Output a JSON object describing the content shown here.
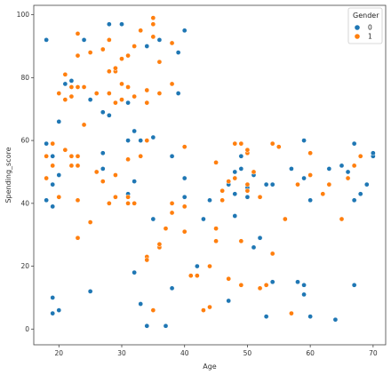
{
  "chart_data": {
    "type": "scatter",
    "xlabel": "Age",
    "ylabel": "Spending_score",
    "xlim": [
      16,
      72
    ],
    "ylim": [
      -5,
      103
    ],
    "xticks": [
      20,
      30,
      40,
      50,
      60,
      70
    ],
    "yticks": [
      0,
      20,
      40,
      60,
      80,
      100
    ],
    "grid": false,
    "legend": {
      "title": "Gender",
      "placement": "top-right",
      "entries": [
        {
          "label": "0",
          "color": "#1f77b4"
        },
        {
          "label": "1",
          "color": "#ff7f0e"
        }
      ]
    },
    "series": [
      {
        "name": "0",
        "color": "#1f77b4",
        "points": [
          [
            18,
            92
          ],
          [
            22,
            79
          ],
          [
            24,
            92
          ],
          [
            25,
            73
          ],
          [
            27,
            69
          ],
          [
            28,
            68
          ],
          [
            30,
            73
          ],
          [
            31,
            72
          ],
          [
            32,
            63
          ],
          [
            33,
            60
          ],
          [
            34,
            90
          ],
          [
            35,
            61
          ],
          [
            36,
            92
          ],
          [
            38,
            91
          ],
          [
            39,
            75
          ],
          [
            39,
            88
          ],
          [
            40,
            95
          ],
          [
            38,
            55
          ],
          [
            21,
            78
          ],
          [
            18,
            59
          ],
          [
            18,
            41
          ],
          [
            19,
            55
          ],
          [
            19,
            46
          ],
          [
            19,
            39
          ],
          [
            20,
            66
          ],
          [
            20,
            49
          ],
          [
            27,
            56
          ],
          [
            27,
            51
          ],
          [
            31,
            60
          ],
          [
            32,
            47
          ],
          [
            31,
            43
          ],
          [
            35,
            35
          ],
          [
            40,
            42
          ],
          [
            40,
            48
          ],
          [
            43,
            35
          ],
          [
            44,
            41
          ],
          [
            46,
            44
          ],
          [
            47,
            46
          ],
          [
            48,
            50
          ],
          [
            48,
            43
          ],
          [
            48,
            36
          ],
          [
            49,
            55
          ],
          [
            49,
            51
          ],
          [
            50,
            42
          ],
          [
            50,
            45
          ],
          [
            51,
            26
          ],
          [
            51,
            49
          ],
          [
            52,
            29
          ],
          [
            53,
            46
          ],
          [
            54,
            46
          ],
          [
            57,
            51
          ],
          [
            59,
            60
          ],
          [
            59,
            48
          ],
          [
            60,
            41
          ],
          [
            63,
            51
          ],
          [
            65,
            52
          ],
          [
            66,
            50
          ],
          [
            67,
            59
          ],
          [
            67,
            41
          ],
          [
            68,
            43
          ],
          [
            69,
            46
          ],
          [
            70,
            55
          ],
          [
            70,
            56
          ],
          [
            67,
            14
          ],
          [
            59,
            14
          ],
          [
            59,
            11
          ],
          [
            60,
            4
          ],
          [
            53,
            4
          ],
          [
            54,
            15
          ],
          [
            58,
            15
          ],
          [
            64,
            3
          ],
          [
            47,
            9
          ],
          [
            42,
            20
          ],
          [
            38,
            13
          ],
          [
            37,
            1
          ],
          [
            34,
            1
          ],
          [
            33,
            8
          ],
          [
            32,
            18
          ],
          [
            25,
            12
          ],
          [
            20,
            6
          ],
          [
            19,
            5
          ],
          [
            19,
            10
          ],
          [
            30,
            97
          ],
          [
            28,
            97
          ]
        ]
      },
      {
        "name": "1",
        "color": "#ff7f0e",
        "points": [
          [
            20,
            75
          ],
          [
            21,
            81
          ],
          [
            21,
            73
          ],
          [
            22,
            77
          ],
          [
            23,
            77
          ],
          [
            23,
            94
          ],
          [
            23,
            87
          ],
          [
            24,
            77
          ],
          [
            24,
            65
          ],
          [
            25,
            88
          ],
          [
            27,
            89
          ],
          [
            28,
            75
          ],
          [
            28,
            92
          ],
          [
            29,
            82
          ],
          [
            29,
            83
          ],
          [
            30,
            73
          ],
          [
            30,
            78
          ],
          [
            30,
            86
          ],
          [
            31,
            77
          ],
          [
            31,
            87
          ],
          [
            32,
            74
          ],
          [
            32,
            90
          ],
          [
            33,
            95
          ],
          [
            34,
            72
          ],
          [
            34,
            76
          ],
          [
            35,
            97
          ],
          [
            35,
            99
          ],
          [
            35,
            93
          ],
          [
            36,
            85
          ],
          [
            36,
            75
          ],
          [
            38,
            78
          ],
          [
            38,
            91
          ],
          [
            29,
            72
          ],
          [
            28,
            82
          ],
          [
            22,
            74
          ],
          [
            26,
            75
          ],
          [
            18,
            48
          ],
          [
            19,
            52
          ],
          [
            19,
            59
          ],
          [
            20,
            42
          ],
          [
            21,
            57
          ],
          [
            22,
            55
          ],
          [
            22,
            52
          ],
          [
            23,
            41
          ],
          [
            23,
            29
          ],
          [
            23,
            52
          ],
          [
            25,
            34
          ],
          [
            26,
            50
          ],
          [
            27,
            47
          ],
          [
            28,
            40
          ],
          [
            29,
            49
          ],
          [
            29,
            42
          ],
          [
            31,
            54
          ],
          [
            31,
            42
          ],
          [
            31,
            40
          ],
          [
            32,
            40
          ],
          [
            33,
            55
          ],
          [
            34,
            60
          ],
          [
            34,
            23
          ],
          [
            34,
            22
          ],
          [
            35,
            6
          ],
          [
            36,
            26
          ],
          [
            36,
            27
          ],
          [
            37,
            32
          ],
          [
            38,
            40
          ],
          [
            38,
            37
          ],
          [
            40,
            31
          ],
          [
            40,
            58
          ],
          [
            40,
            39
          ],
          [
            41,
            17
          ],
          [
            42,
            17
          ],
          [
            43,
            6
          ],
          [
            44,
            20
          ],
          [
            44,
            7
          ],
          [
            45,
            32
          ],
          [
            45,
            28
          ],
          [
            45,
            53
          ],
          [
            46,
            44
          ],
          [
            46,
            41
          ],
          [
            47,
            47
          ],
          [
            47,
            16
          ],
          [
            48,
            59
          ],
          [
            48,
            48
          ],
          [
            49,
            59
          ],
          [
            49,
            28
          ],
          [
            49,
            14
          ],
          [
            50,
            56
          ],
          [
            50,
            44
          ],
          [
            50,
            46
          ],
          [
            50,
            57
          ],
          [
            51,
            50
          ],
          [
            52,
            42
          ],
          [
            52,
            13
          ],
          [
            53,
            14
          ],
          [
            54,
            59
          ],
          [
            54,
            24
          ],
          [
            55,
            58
          ],
          [
            56,
            35
          ],
          [
            57,
            5
          ],
          [
            58,
            46
          ],
          [
            60,
            49
          ],
          [
            60,
            56
          ],
          [
            62,
            43
          ],
          [
            63,
            46
          ],
          [
            65,
            35
          ],
          [
            66,
            48
          ],
          [
            67,
            52
          ],
          [
            68,
            55
          ],
          [
            18,
            55
          ],
          [
            23,
            55
          ]
        ]
      }
    ]
  }
}
